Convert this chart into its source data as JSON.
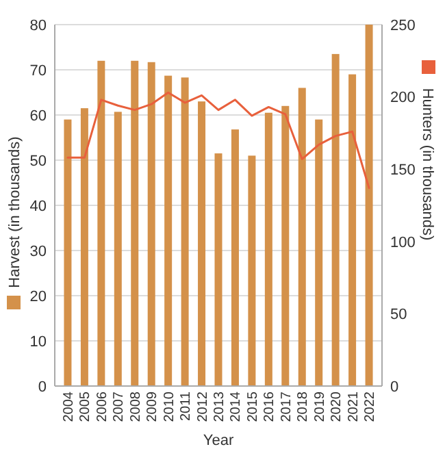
{
  "chart_data": {
    "type": "bar",
    "xlabel": "Year",
    "ylabel": "Harvest (in thousands)",
    "y2label": "Hunters (in thousands)",
    "categories": [
      "2004",
      "2005",
      "2006",
      "2007",
      "2008",
      "2009",
      "2010",
      "2011",
      "2012",
      "2013",
      "2014",
      "2015",
      "2016",
      "2017",
      "2018",
      "2019",
      "2020",
      "2021",
      "2022"
    ],
    "series": [
      {
        "color": "#d4914a",
        "values": [
          59,
          61.5,
          72,
          60.7,
          72,
          71.7,
          68.7,
          68.3,
          63,
          51.5,
          56.8,
          51,
          60.5,
          62,
          66,
          59,
          73.5,
          69,
          80
        ]
      },
      {
        "type": "line",
        "axis": "y2",
        "color": "#e8603c",
        "values": [
          158,
          158,
          198,
          194,
          191,
          195,
          203,
          196,
          201,
          191,
          198,
          187,
          193,
          188,
          157,
          167,
          173,
          176,
          137
        ]
      }
    ],
    "ylim": [
      0,
      80
    ],
    "yticks": [
      0,
      10,
      20,
      30,
      40,
      50,
      60,
      70,
      80
    ],
    "y2lim": [
      0,
      250
    ],
    "y2ticks": [
      0,
      50,
      100,
      150,
      200,
      250
    ],
    "grid": "y",
    "legend": false
  }
}
